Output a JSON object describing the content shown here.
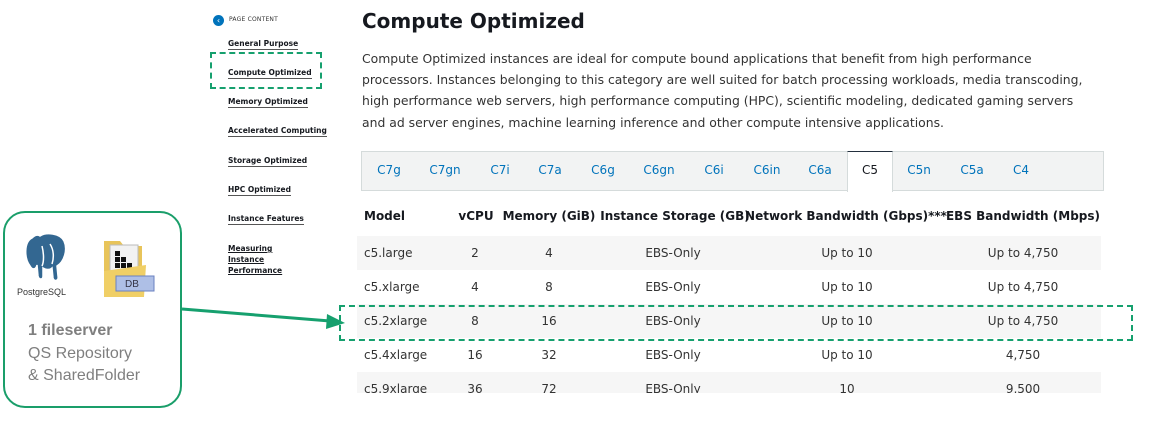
{
  "sidebar": {
    "header": "PAGE CONTENT",
    "items": [
      {
        "label": "General Purpose"
      },
      {
        "label": "Compute Optimized"
      },
      {
        "label": "Memory Optimized"
      },
      {
        "label": "Accelerated Computing"
      },
      {
        "label": "Storage Optimized"
      },
      {
        "label": "HPC Optimized"
      },
      {
        "label": "Instance Features"
      },
      {
        "label": "Measuring Instance Performance"
      }
    ]
  },
  "main": {
    "title": "Compute Optimized",
    "description": "Compute Optimized instances are ideal for compute bound applications that benefit from high performance processors. Instances belonging to this category are well suited for batch processing workloads, media transcoding, high performance web servers, high performance computing (HPC), scientific modeling, dedicated gaming servers and ad server engines, machine learning inference and other compute intensive applications.",
    "tabs": [
      "C7g",
      "C7gn",
      "C7i",
      "C7a",
      "C6g",
      "C6gn",
      "C6i",
      "C6in",
      "C6a",
      "C5",
      "C5n",
      "C5a",
      "C4"
    ],
    "active_tab": "C5",
    "columns": [
      "Model",
      "vCPU",
      "Memory (GiB)",
      "Instance Storage (GB)",
      "Network Bandwidth (Gbps)***",
      "EBS Bandwidth (Mbps)"
    ],
    "rows": [
      [
        "c5.large",
        "2",
        "4",
        "EBS-Only",
        "Up to 10",
        "Up to 4,750"
      ],
      [
        "c5.xlarge",
        "4",
        "8",
        "EBS-Only",
        "Up to 10",
        "Up to 4,750"
      ],
      [
        "c5.2xlarge",
        "8",
        "16",
        "EBS-Only",
        "Up to 10",
        "Up to 4,750"
      ],
      [
        "c5.4xlarge",
        "16",
        "32",
        "EBS-Only",
        "Up to 10",
        "4,750"
      ],
      [
        "c5.9xlarge",
        "36",
        "72",
        "EBS-Only",
        "10",
        "9,500"
      ]
    ]
  },
  "annotation": {
    "logo_text": "PostgreSQL",
    "folder_badge": "DB",
    "title": "1 fileserver",
    "line1": "QS Repository",
    "line2": "& SharedFolder",
    "accent": "#16a06e"
  }
}
